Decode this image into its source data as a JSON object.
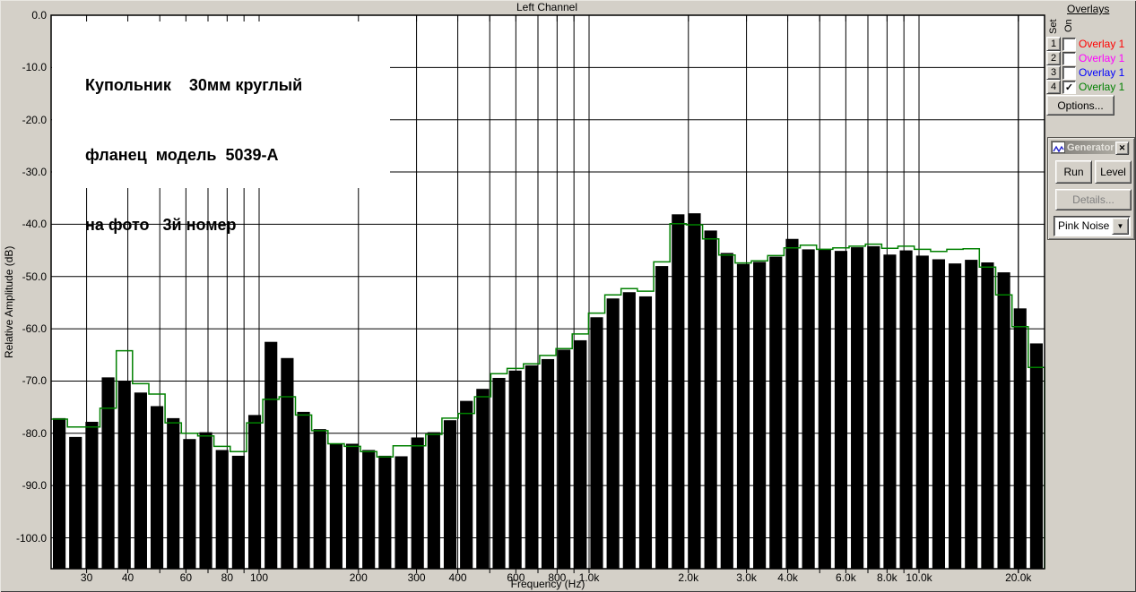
{
  "window": {
    "title": "Left Channel"
  },
  "colors": {
    "background": "#d4d0c8",
    "plot_background": "#ffffff",
    "bar_color": "#000000",
    "grid_color": "#000000",
    "overlay_active_color": "#008000",
    "overlay1_color": "#ff0000",
    "overlay2_color": "#ff00ff",
    "overlay3_color": "#0000ff",
    "overlay4_color": "#008000",
    "disabled_text": "#808080"
  },
  "annotation": {
    "line1": "Купольник    30мм круглый",
    "line2": "фланец  модель  5039-А",
    "line3": "на фото   3й номер"
  },
  "axes": {
    "y_title": "Relative Amplitude (dB)",
    "x_title": "Frequency (Hz)",
    "y_tick_labels": [
      "0.0",
      "-10.0",
      "-20.0",
      "-30.0",
      "-40.0",
      "-50.0",
      "-60.0",
      "-70.0",
      "-80.0",
      "-90.0",
      "-100.0"
    ],
    "y_tick_db": [
      0,
      -10,
      -20,
      -30,
      -40,
      -50,
      -60,
      -70,
      -80,
      -90,
      -100
    ],
    "x_tick_labels": [
      "30",
      "40",
      "60",
      "80",
      "100",
      "200",
      "300",
      "400",
      "600",
      "800",
      "1.0k",
      "2.0k",
      "3.0k",
      "4.0k",
      "6.0k",
      "8.0k",
      "10.0k",
      "20.0k"
    ],
    "x_tick_freqs": [
      30,
      40,
      60,
      80,
      100,
      200,
      300,
      400,
      600,
      800,
      1000,
      2000,
      3000,
      4000,
      6000,
      8000,
      10000,
      20000
    ]
  },
  "overlays_panel": {
    "heading": "Overlays",
    "set_label": "Set",
    "on_label": "On",
    "rows": [
      {
        "num": "1",
        "label": "Overlay 1",
        "color": "#ff0000",
        "checked": false
      },
      {
        "num": "2",
        "label": "Overlay 1",
        "color": "#ff00ff",
        "checked": false
      },
      {
        "num": "3",
        "label": "Overlay 1",
        "color": "#0000ff",
        "checked": false
      },
      {
        "num": "4",
        "label": "Overlay 1",
        "color": "#008000",
        "checked": true
      }
    ],
    "options_label": "Options..."
  },
  "generator": {
    "title": "Generator",
    "run_label": "Run",
    "level_label": "Level",
    "details_label": "Details...",
    "source_value": "Pink Noise",
    "close_glyph": "✕",
    "arrow_glyph": "▼",
    "check_glyph": "✓"
  },
  "chart_data": {
    "type": "bar",
    "title": "Left Channel",
    "xlabel": "Frequency (Hz)",
    "ylabel": "Relative Amplitude (dB)",
    "x_scale": "log",
    "ylim": [
      -106,
      0
    ],
    "grid": true,
    "bar_resolution": "1/6 octave",
    "frequencies_hz": [
      25,
      28,
      31.5,
      35.5,
      40,
      45,
      50,
      56,
      63,
      71,
      80,
      90,
      100,
      112,
      125,
      140,
      160,
      180,
      200,
      224,
      250,
      280,
      315,
      355,
      400,
      450,
      500,
      560,
      630,
      710,
      800,
      900,
      1000,
      1120,
      1250,
      1400,
      1600,
      1800,
      2000,
      2240,
      2500,
      2800,
      3150,
      3550,
      4000,
      4500,
      5000,
      5600,
      6300,
      7100,
      8000,
      9000,
      10000,
      11200,
      12500,
      14000,
      16000,
      18000,
      20000,
      22400,
      25000
    ],
    "series": [
      {
        "name": "Left Channel spectrum bars",
        "color": "#000000",
        "values_db": [
          -77.1,
          -80.7,
          -77.8,
          -69.3,
          -70.0,
          -72.2,
          -74.8,
          -77.1,
          -81.1,
          -79.8,
          -83.2,
          -84.3,
          -76.5,
          -62.5,
          -65.6,
          -75.9,
          -79.2,
          -82.0,
          -82.0,
          -83.2,
          -84.3,
          -84.4,
          -80.8,
          -79.8,
          -77.5,
          -73.8,
          -71.5,
          -69.4,
          -68.0,
          -67.0,
          -65.8,
          -64.0,
          -62.2,
          -57.8,
          -54.2,
          -53.0,
          -53.8,
          -48.0,
          -38.1,
          -37.9,
          -41.2,
          -45.5,
          -47.6,
          -47.2,
          -46.2,
          -42.8,
          -44.8,
          -44.7,
          -45.1,
          -44.4,
          -44.2,
          -45.8,
          -45.0,
          -46.0,
          -46.7,
          -47.5,
          -46.8,
          -47.3,
          -49.2,
          -56.1,
          -62.8
        ]
      },
      {
        "name": "Overlay 4 (green)",
        "color": "#008000",
        "values_db": [
          -77.3,
          -78.8,
          -78.8,
          -75.2,
          -64.2,
          -70.5,
          -72.5,
          -78.0,
          -80.0,
          -80.5,
          -82.5,
          -83.5,
          -78.0,
          -73.5,
          -73.0,
          -76.5,
          -79.5,
          -82.0,
          -82.5,
          -83.5,
          -84.5,
          -82.4,
          -82.4,
          -80.2,
          -77.1,
          -76.2,
          -73.0,
          -68.6,
          -67.6,
          -66.7,
          -65.1,
          -63.8,
          -61.0,
          -57.0,
          -53.5,
          -52.3,
          -52.8,
          -47.2,
          -39.9,
          -40.1,
          -42.8,
          -45.9,
          -47.4,
          -47.0,
          -46.0,
          -44.5,
          -44.0,
          -44.8,
          -44.5,
          -44.2,
          -43.8,
          -44.6,
          -44.2,
          -44.8,
          -45.2,
          -44.8,
          -44.7,
          -48.2,
          -53.5,
          -59.6,
          -67.4
        ]
      }
    ]
  }
}
